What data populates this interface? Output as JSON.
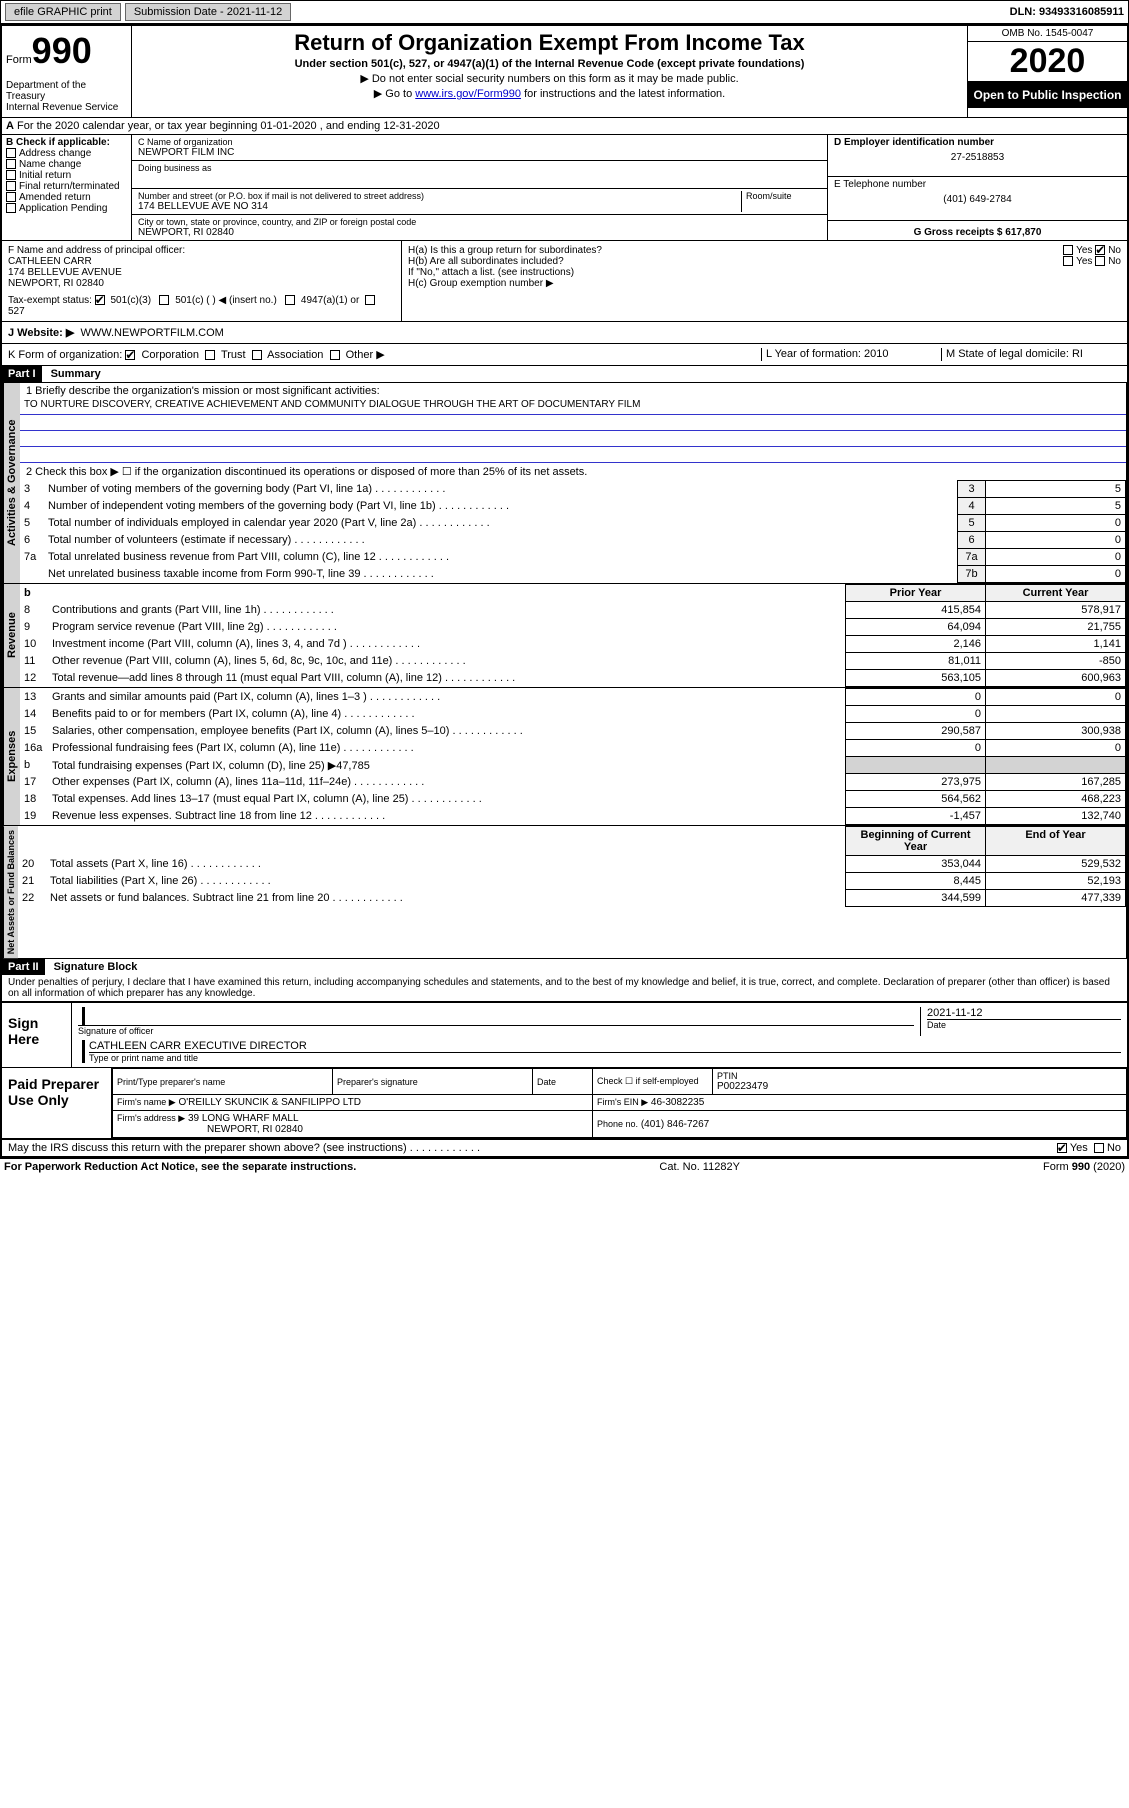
{
  "topbar": {
    "efile_label": "efile GRAPHIC print",
    "submission_label": "Submission Date - 2021-11-12",
    "dln_label": "DLN: 93493316085911"
  },
  "header": {
    "form_word": "Form",
    "form_num": "990",
    "title": "Return of Organization Exempt From Income Tax",
    "subtitle": "Under section 501(c), 527, or 4947(a)(1) of the Internal Revenue Code (except private foundations)",
    "note1": "▶ Do not enter social security numbers on this form as it may be made public.",
    "note2_pre": "▶ Go to ",
    "note2_link": "www.irs.gov/Form990",
    "note2_post": " for instructions and the latest information.",
    "dept": "Department of the Treasury\nInternal Revenue Service",
    "omb": "OMB No. 1545-0047",
    "year": "2020",
    "inspection": "Open to Public Inspection"
  },
  "row_a": "For the 2020 calendar year, or tax year beginning 01-01-2020     , and ending 12-31-2020",
  "box_b": {
    "title": "B Check if applicable:",
    "items": [
      "Address change",
      "Name change",
      "Initial return",
      "Final return/terminated",
      "Amended return",
      "Application Pending"
    ]
  },
  "box_c": {
    "name_label": "C Name of organization",
    "name": "NEWPORT FILM INC",
    "dba_label": "Doing business as",
    "addr_label": "Number and street (or P.O. box if mail is not delivered to street address)",
    "room_label": "Room/suite",
    "addr": "174 BELLEVUE AVE NO 314",
    "city_label": "City or town, state or province, country, and ZIP or foreign postal code",
    "city": "NEWPORT, RI  02840"
  },
  "box_d": {
    "label": "D Employer identification number",
    "value": "27-2518853"
  },
  "box_e": {
    "label": "E Telephone number",
    "value": "(401) 649-2784"
  },
  "box_g": {
    "label": "G Gross receipts $ 617,870"
  },
  "box_f": {
    "label": "F  Name and address of principal officer:",
    "name": "CATHLEEN CARR",
    "addr1": "174 BELLEVUE AVENUE",
    "addr2": "NEWPORT, RI  02840"
  },
  "box_h": {
    "a": "H(a)  Is this a group return for subordinates?",
    "b": "H(b)  Are all subordinates included?",
    "note": "If \"No,\" attach a list. (see instructions)",
    "c": "H(c)  Group exemption number ▶"
  },
  "tax_exempt": {
    "label": "Tax-exempt status:",
    "opts": [
      "501(c)(3)",
      "501(c) (  ) ◀ (insert no.)",
      "4947(a)(1) or",
      "527"
    ]
  },
  "website": {
    "label": "J   Website: ▶",
    "value": "WWW.NEWPORTFILM.COM"
  },
  "row_k": {
    "label": "K Form of organization:",
    "opts": [
      "Corporation",
      "Trust",
      "Association",
      "Other ▶"
    ],
    "l_label": "L Year of formation: 2010",
    "m_label": "M State of legal domicile: RI"
  },
  "part1": {
    "hdr": "Part I",
    "title": "Summary",
    "line1_label": "1   Briefly describe the organization's mission or most significant activities:",
    "mission": "TO NURTURE DISCOVERY, CREATIVE ACHIEVEMENT AND COMMUNITY DIALOGUE THROUGH THE ART OF DOCUMENTARY FILM",
    "line2": "2    Check this box ▶ ☐  if the organization discontinued its operations or disposed of more than 25% of its net assets.",
    "governance_rows": [
      {
        "n": "3",
        "label": "Number of voting members of the governing body (Part VI, line 1a)",
        "box": "3",
        "val": "5"
      },
      {
        "n": "4",
        "label": "Number of independent voting members of the governing body (Part VI, line 1b)",
        "box": "4",
        "val": "5"
      },
      {
        "n": "5",
        "label": "Total number of individuals employed in calendar year 2020 (Part V, line 2a)",
        "box": "5",
        "val": "0"
      },
      {
        "n": "6",
        "label": "Total number of volunteers (estimate if necessary)",
        "box": "6",
        "val": "0"
      },
      {
        "n": "7a",
        "label": "Total unrelated business revenue from Part VIII, column (C), line 12",
        "box": "7a",
        "val": "0"
      },
      {
        "n": "",
        "label": "Net unrelated business taxable income from Form 990-T, line 39",
        "box": "7b",
        "val": "0"
      }
    ],
    "col_prior": "Prior Year",
    "col_current": "Current Year",
    "revenue_rows": [
      {
        "n": "8",
        "label": "Contributions and grants (Part VIII, line 1h)",
        "prior": "415,854",
        "curr": "578,917"
      },
      {
        "n": "9",
        "label": "Program service revenue (Part VIII, line 2g)",
        "prior": "64,094",
        "curr": "21,755"
      },
      {
        "n": "10",
        "label": "Investment income (Part VIII, column (A), lines 3, 4, and 7d )",
        "prior": "2,146",
        "curr": "1,141"
      },
      {
        "n": "11",
        "label": "Other revenue (Part VIII, column (A), lines 5, 6d, 8c, 9c, 10c, and 11e)",
        "prior": "81,011",
        "curr": "-850"
      },
      {
        "n": "12",
        "label": "Total revenue—add lines 8 through 11 (must equal Part VIII, column (A), line 12)",
        "prior": "563,105",
        "curr": "600,963"
      }
    ],
    "expense_rows": [
      {
        "n": "13",
        "label": "Grants and similar amounts paid (Part IX, column (A), lines 1–3 )",
        "prior": "0",
        "curr": "0"
      },
      {
        "n": "14",
        "label": "Benefits paid to or for members (Part IX, column (A), line 4)",
        "prior": "0",
        "curr": ""
      },
      {
        "n": "15",
        "label": "Salaries, other compensation, employee benefits (Part IX, column (A), lines 5–10)",
        "prior": "290,587",
        "curr": "300,938"
      },
      {
        "n": "16a",
        "label": "Professional fundraising fees (Part IX, column (A), line 11e)",
        "prior": "0",
        "curr": "0"
      },
      {
        "n": "b",
        "label": "Total fundraising expenses (Part IX, column (D), line 25) ▶47,785",
        "prior": "",
        "curr": "",
        "shaded": true
      },
      {
        "n": "17",
        "label": "Other expenses (Part IX, column (A), lines 11a–11d, 11f–24e)",
        "prior": "273,975",
        "curr": "167,285"
      },
      {
        "n": "18",
        "label": "Total expenses. Add lines 13–17 (must equal Part IX, column (A), line 25)",
        "prior": "564,562",
        "curr": "468,223"
      },
      {
        "n": "19",
        "label": "Revenue less expenses. Subtract line 18 from line 12",
        "prior": "-1,457",
        "curr": "132,740"
      }
    ],
    "col_begin": "Beginning of Current Year",
    "col_end": "End of Year",
    "netassets_rows": [
      {
        "n": "20",
        "label": "Total assets (Part X, line 16)",
        "prior": "353,044",
        "curr": "529,532"
      },
      {
        "n": "21",
        "label": "Total liabilities (Part X, line 26)",
        "prior": "8,445",
        "curr": "52,193"
      },
      {
        "n": "22",
        "label": "Net assets or fund balances. Subtract line 21 from line 20",
        "prior": "344,599",
        "curr": "477,339"
      }
    ],
    "tab_governance": "Activities & Governance",
    "tab_revenue": "Revenue",
    "tab_expenses": "Expenses",
    "tab_netassets": "Net Assets or Fund Balances"
  },
  "part2": {
    "hdr": "Part II",
    "title": "Signature Block",
    "penalty": "Under penalties of perjury, I declare that I have examined this return, including accompanying schedules and statements, and to the best of my knowledge and belief, it is true, correct, and complete. Declaration of preparer (other than officer) is based on all information of which preparer has any knowledge.",
    "sign_here": "Sign Here",
    "sig_officer_label": "Signature of officer",
    "date_label": "Date",
    "sig_date": "2021-11-12",
    "officer_name": "CATHLEEN CARR  EXECUTIVE DIRECTOR",
    "name_title_label": "Type or print name and title",
    "paid_prep": "Paid Preparer Use Only",
    "prep_name_label": "Print/Type preparer's name",
    "prep_sig_label": "Preparer's signature",
    "prep_date_label": "Date",
    "prep_check_label": "Check ☐ if self-employed",
    "ptin_label": "PTIN",
    "ptin": "P00223479",
    "firm_name_label": "Firm's name    ▶",
    "firm_name": "O'REILLY SKUNCIK & SANFILIPPO LTD",
    "firm_ein_label": "Firm's EIN ▶",
    "firm_ein": "46-3082235",
    "firm_addr_label": "Firm's address ▶",
    "firm_addr1": "39 LONG WHARF MALL",
    "firm_addr2": "NEWPORT, RI  02840",
    "firm_phone_label": "Phone no.",
    "firm_phone": "(401) 846-7267",
    "discuss": "May the IRS discuss this return with the preparer shown above? (see instructions)"
  },
  "footer": {
    "left": "For Paperwork Reduction Act Notice, see the separate instructions.",
    "mid": "Cat. No. 11282Y",
    "right": "Form 990 (2020)"
  },
  "yesno": {
    "yes": "Yes",
    "no": "No"
  }
}
